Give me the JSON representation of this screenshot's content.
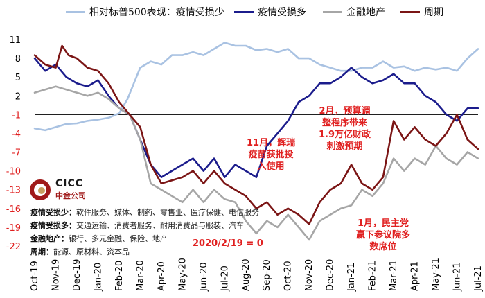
{
  "legend": [
    {
      "name": "相对标普500表现：疫情受损少",
      "color": "#a9c2e2"
    },
    {
      "name": "疫情受损多",
      "color": "#1b1c8c"
    },
    {
      "name": "金融地产",
      "color": "#a6a6a6"
    },
    {
      "name": "周期",
      "color": "#7b1515"
    }
  ],
  "brand": {
    "name": "CICC",
    "sub": "中金公司"
  },
  "notes": [
    {
      "label": "疫情受损少：",
      "text": "软件服务、媒体、制药、零售业、医疗保健、电信服务"
    },
    {
      "label": "疫情受损多：",
      "text": "交通运输、消费者服务、耐用消费品与服装、汽车"
    },
    {
      "label": "金融地产：",
      "text": "银行、多元金融、保险、地产"
    },
    {
      "label": "周期：",
      "text": "能源、原材料、资本品"
    }
  ],
  "annotations": {
    "center": "2020/2/19 = 0",
    "vaccine": "11月，辉瑞\n疫苗获批投\n入使用",
    "stimulus": "2月，预算调\n整程序带来\n1.9万亿财政\n刺激预期",
    "senate": "1月，民主党\n赢下参议院多\n数席位"
  },
  "colors": {
    "annotation": "#e02020",
    "zero_line": "#000000"
  },
  "chart_data": {
    "type": "line",
    "x_axis": {
      "ticks": [
        "Oct-19",
        "Nov-19",
        "Dec-19",
        "Jan-20",
        "Feb-20",
        "Mar-20",
        "Apr-20",
        "May-20",
        "Jun-20",
        "Jul-20",
        "Aug-20",
        "Sep-20",
        "Oct-20",
        "Nov-20",
        "Dec-20",
        "Jan-21",
        "Feb-21",
        "Mar-21",
        "Apr-21",
        "May-21",
        "Jun-21",
        "Jul-21"
      ],
      "range": [
        0,
        21
      ]
    },
    "y_axis": {
      "ticks": [
        11,
        8,
        5,
        2,
        -1,
        -4,
        -7,
        -10,
        -13,
        -16,
        -19,
        -22
      ],
      "range": [
        -22,
        11
      ],
      "tick_colors": {
        "positive": "#000000",
        "negative": "#e02020"
      }
    },
    "grid": false,
    "zero_line_y": -1,
    "series": [
      {
        "name": "相对标普500表现：疫情受损少",
        "color": "#a9c2e2",
        "points": [
          [
            0,
            -3.2
          ],
          [
            0.5,
            -3.5
          ],
          [
            1,
            -3
          ],
          [
            1.5,
            -2.5
          ],
          [
            2,
            -2.4
          ],
          [
            2.5,
            -2
          ],
          [
            3,
            -1.8
          ],
          [
            3.5,
            -1.5
          ],
          [
            4,
            -0.8
          ],
          [
            4.4,
            1.5
          ],
          [
            4.7,
            4
          ],
          [
            5,
            6.5
          ],
          [
            5.5,
            7.5
          ],
          [
            6,
            7
          ],
          [
            6.5,
            8.5
          ],
          [
            7,
            8.5
          ],
          [
            7.5,
            9
          ],
          [
            8,
            8.5
          ],
          [
            8.5,
            9.5
          ],
          [
            9,
            10.5
          ],
          [
            9.5,
            10
          ],
          [
            10,
            10
          ],
          [
            10.5,
            9.3
          ],
          [
            11,
            9.5
          ],
          [
            11.5,
            9
          ],
          [
            12,
            9.5
          ],
          [
            12.5,
            8
          ],
          [
            13,
            8
          ],
          [
            13.5,
            7
          ],
          [
            14,
            6.5
          ],
          [
            14.5,
            6
          ],
          [
            15,
            6
          ],
          [
            15.5,
            6.5
          ],
          [
            16,
            6.5
          ],
          [
            16.5,
            7.5
          ],
          [
            17,
            6.5
          ],
          [
            17.5,
            6.7
          ],
          [
            18,
            6
          ],
          [
            18.5,
            6.5
          ],
          [
            19,
            6.2
          ],
          [
            19.5,
            6.5
          ],
          [
            20,
            6
          ],
          [
            20.5,
            8
          ],
          [
            21,
            9.5
          ]
        ]
      },
      {
        "name": "疫情受损多",
        "color": "#1b1c8c",
        "points": [
          [
            0,
            8
          ],
          [
            0.5,
            6
          ],
          [
            1,
            7
          ],
          [
            1.5,
            5
          ],
          [
            2,
            4
          ],
          [
            2.5,
            3.5
          ],
          [
            3,
            4.5
          ],
          [
            3.5,
            2
          ],
          [
            4,
            0
          ],
          [
            4.5,
            -1
          ],
          [
            5,
            -5
          ],
          [
            5.5,
            -9
          ],
          [
            6,
            -11
          ],
          [
            6.5,
            -10
          ],
          [
            7,
            -9
          ],
          [
            7.5,
            -8
          ],
          [
            8,
            -10
          ],
          [
            8.5,
            -8
          ],
          [
            9,
            -11
          ],
          [
            9.5,
            -9
          ],
          [
            10,
            -10
          ],
          [
            10.5,
            -11
          ],
          [
            11,
            -6
          ],
          [
            11.5,
            -4
          ],
          [
            12,
            -2
          ],
          [
            12.5,
            1
          ],
          [
            13,
            2
          ],
          [
            13.5,
            4
          ],
          [
            14,
            4
          ],
          [
            14.5,
            5
          ],
          [
            15,
            6.5
          ],
          [
            15.5,
            5
          ],
          [
            16,
            4
          ],
          [
            16.5,
            4.5
          ],
          [
            17,
            5.5
          ],
          [
            17.5,
            4
          ],
          [
            18,
            4
          ],
          [
            18.5,
            2
          ],
          [
            19,
            1
          ],
          [
            19.5,
            -1
          ],
          [
            20,
            -2
          ],
          [
            20.5,
            0
          ],
          [
            21,
            0
          ]
        ]
      },
      {
        "name": "金融地产",
        "color": "#a6a6a6",
        "points": [
          [
            0,
            2.5
          ],
          [
            0.5,
            3
          ],
          [
            1,
            3.5
          ],
          [
            1.5,
            3
          ],
          [
            2,
            2.5
          ],
          [
            2.5,
            2
          ],
          [
            3,
            2.5
          ],
          [
            3.5,
            1.5
          ],
          [
            4,
            0
          ],
          [
            4.5,
            -1
          ],
          [
            5,
            -5
          ],
          [
            5.5,
            -12
          ],
          [
            6,
            -13
          ],
          [
            6.5,
            -14
          ],
          [
            7,
            -15
          ],
          [
            7.5,
            -13
          ],
          [
            8,
            -15
          ],
          [
            8.5,
            -13
          ],
          [
            9,
            -14.5
          ],
          [
            9.5,
            -15
          ],
          [
            10,
            -18
          ],
          [
            10.5,
            -20
          ],
          [
            11,
            -18
          ],
          [
            11.5,
            -19
          ],
          [
            12,
            -17
          ],
          [
            12.5,
            -19
          ],
          [
            13,
            -21
          ],
          [
            13.5,
            -18
          ],
          [
            14,
            -17
          ],
          [
            14.5,
            -16
          ],
          [
            15,
            -15.5
          ],
          [
            15.5,
            -13
          ],
          [
            16,
            -14
          ],
          [
            16.5,
            -12
          ],
          [
            17,
            -8
          ],
          [
            17.5,
            -10
          ],
          [
            18,
            -8
          ],
          [
            18.5,
            -9
          ],
          [
            19,
            -6
          ],
          [
            19.5,
            -8
          ],
          [
            20,
            -9
          ],
          [
            20.5,
            -7
          ],
          [
            21,
            -8
          ]
        ]
      },
      {
        "name": "周期",
        "color": "#7b1515",
        "points": [
          [
            0,
            8.5
          ],
          [
            0.5,
            7
          ],
          [
            1,
            6.5
          ],
          [
            1.3,
            10
          ],
          [
            1.6,
            8.5
          ],
          [
            2,
            8
          ],
          [
            2.5,
            6.5
          ],
          [
            3,
            6
          ],
          [
            3.5,
            4
          ],
          [
            4,
            1
          ],
          [
            4.5,
            -1
          ],
          [
            5,
            -3
          ],
          [
            5.5,
            -9
          ],
          [
            6,
            -12
          ],
          [
            6.5,
            -11.5
          ],
          [
            7,
            -11
          ],
          [
            7.5,
            -10
          ],
          [
            8,
            -12
          ],
          [
            8.5,
            -10
          ],
          [
            9,
            -12
          ],
          [
            9.5,
            -13
          ],
          [
            10,
            -14
          ],
          [
            10.5,
            -16
          ],
          [
            11,
            -15
          ],
          [
            11.5,
            -17
          ],
          [
            12,
            -16
          ],
          [
            12.5,
            -17
          ],
          [
            13,
            -18.5
          ],
          [
            13.5,
            -15
          ],
          [
            14,
            -13
          ],
          [
            14.5,
            -12
          ],
          [
            15,
            -9
          ],
          [
            15.5,
            -12
          ],
          [
            16,
            -13
          ],
          [
            16.5,
            -11
          ],
          [
            17,
            -2
          ],
          [
            17.5,
            -5
          ],
          [
            18,
            -3
          ],
          [
            18.5,
            -5
          ],
          [
            19,
            -6
          ],
          [
            19.5,
            -4
          ],
          [
            20,
            -1
          ],
          [
            20.5,
            -5
          ],
          [
            21,
            -6.5
          ]
        ]
      }
    ]
  }
}
